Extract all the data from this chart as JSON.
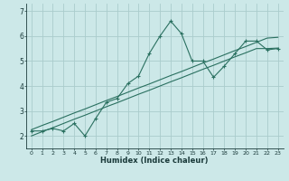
{
  "xlabel": "Humidex (Indice chaleur)",
  "bg_color": "#cce8e8",
  "grid_color": "#aacccc",
  "line_color": "#2a7060",
  "x_data": [
    0,
    1,
    2,
    3,
    4,
    5,
    6,
    7,
    8,
    9,
    10,
    11,
    12,
    13,
    14,
    15,
    16,
    17,
    18,
    19,
    20,
    21,
    22,
    23
  ],
  "y_main": [
    2.2,
    2.2,
    2.3,
    2.2,
    2.5,
    2.0,
    2.7,
    3.35,
    3.5,
    4.1,
    4.4,
    5.3,
    6.0,
    6.6,
    6.1,
    5.0,
    5.0,
    4.35,
    4.8,
    5.3,
    5.8,
    5.8,
    5.45,
    5.5
  ],
  "y_upper": [
    2.25,
    2.42,
    2.58,
    2.75,
    2.92,
    3.08,
    3.25,
    3.42,
    3.58,
    3.75,
    3.92,
    4.08,
    4.25,
    4.42,
    4.58,
    4.75,
    4.92,
    5.08,
    5.25,
    5.42,
    5.58,
    5.75,
    5.92,
    5.95
  ],
  "y_lower": [
    2.0,
    2.17,
    2.33,
    2.5,
    2.67,
    2.83,
    3.0,
    3.17,
    3.33,
    3.5,
    3.67,
    3.83,
    4.0,
    4.17,
    4.33,
    4.5,
    4.67,
    4.83,
    5.0,
    5.17,
    5.33,
    5.5,
    5.5,
    5.52
  ],
  "xlim": [
    -0.5,
    23.5
  ],
  "ylim": [
    1.5,
    7.3
  ],
  "yticks": [
    2,
    3,
    4,
    5,
    6,
    7
  ],
  "xticks": [
    0,
    1,
    2,
    3,
    4,
    5,
    6,
    7,
    8,
    9,
    10,
    11,
    12,
    13,
    14,
    15,
    16,
    17,
    18,
    19,
    20,
    21,
    22,
    23
  ]
}
